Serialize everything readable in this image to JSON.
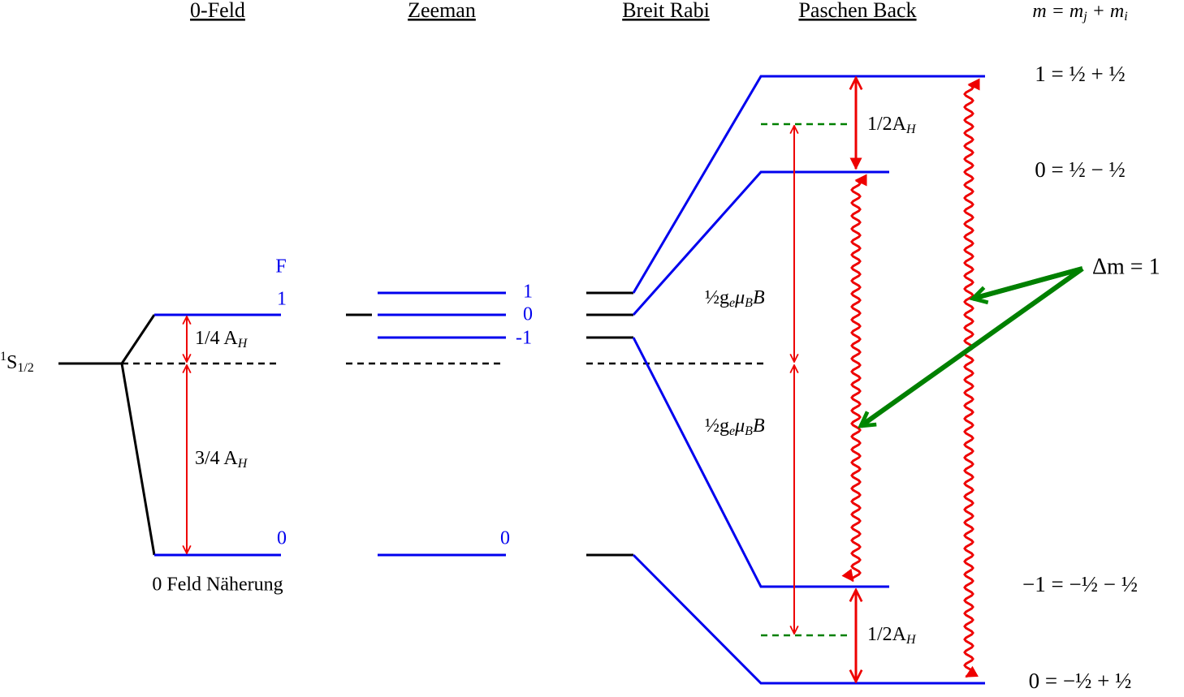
{
  "headers": [
    "0-Feld",
    "Zeeman",
    "Breit Rabi",
    "Paschen Back"
  ],
  "m_formula": {
    "lhs": "m = m",
    "j": "j",
    "plus": " + m",
    "i": "i"
  },
  "state": {
    "sup": "1",
    "main": "S",
    "sub": "1/2"
  },
  "zero_field": {
    "F": "F",
    "levels": [
      "1",
      "0"
    ],
    "splits": [
      {
        "text": "1/4 A",
        "sub": "H"
      },
      {
        "text": "3/4 A",
        "sub": "H"
      }
    ],
    "caption": "0 Feld Näherung"
  },
  "zeeman": {
    "levels": [
      "1",
      "0",
      "-1",
      "0"
    ]
  },
  "paschen_back": {
    "hyperfine": [
      {
        "text": "1/2A",
        "sub": "H"
      },
      {
        "text": "1/2A",
        "sub": "H"
      }
    ],
    "zeeman_split": [
      {
        "a": "½g",
        "e": "e",
        "mu": "μ",
        "B_sub": "B",
        "B": "B"
      },
      {
        "a": "½g",
        "e": "e",
        "mu": "μ",
        "B_sub": "B",
        "B": "B"
      }
    ],
    "states": [
      "1 = ½ + ½",
      "0 = ½ − ½",
      "−1 = −½ − ½",
      "0 = −½ + ½"
    ],
    "transition": "Δm = 1"
  }
}
